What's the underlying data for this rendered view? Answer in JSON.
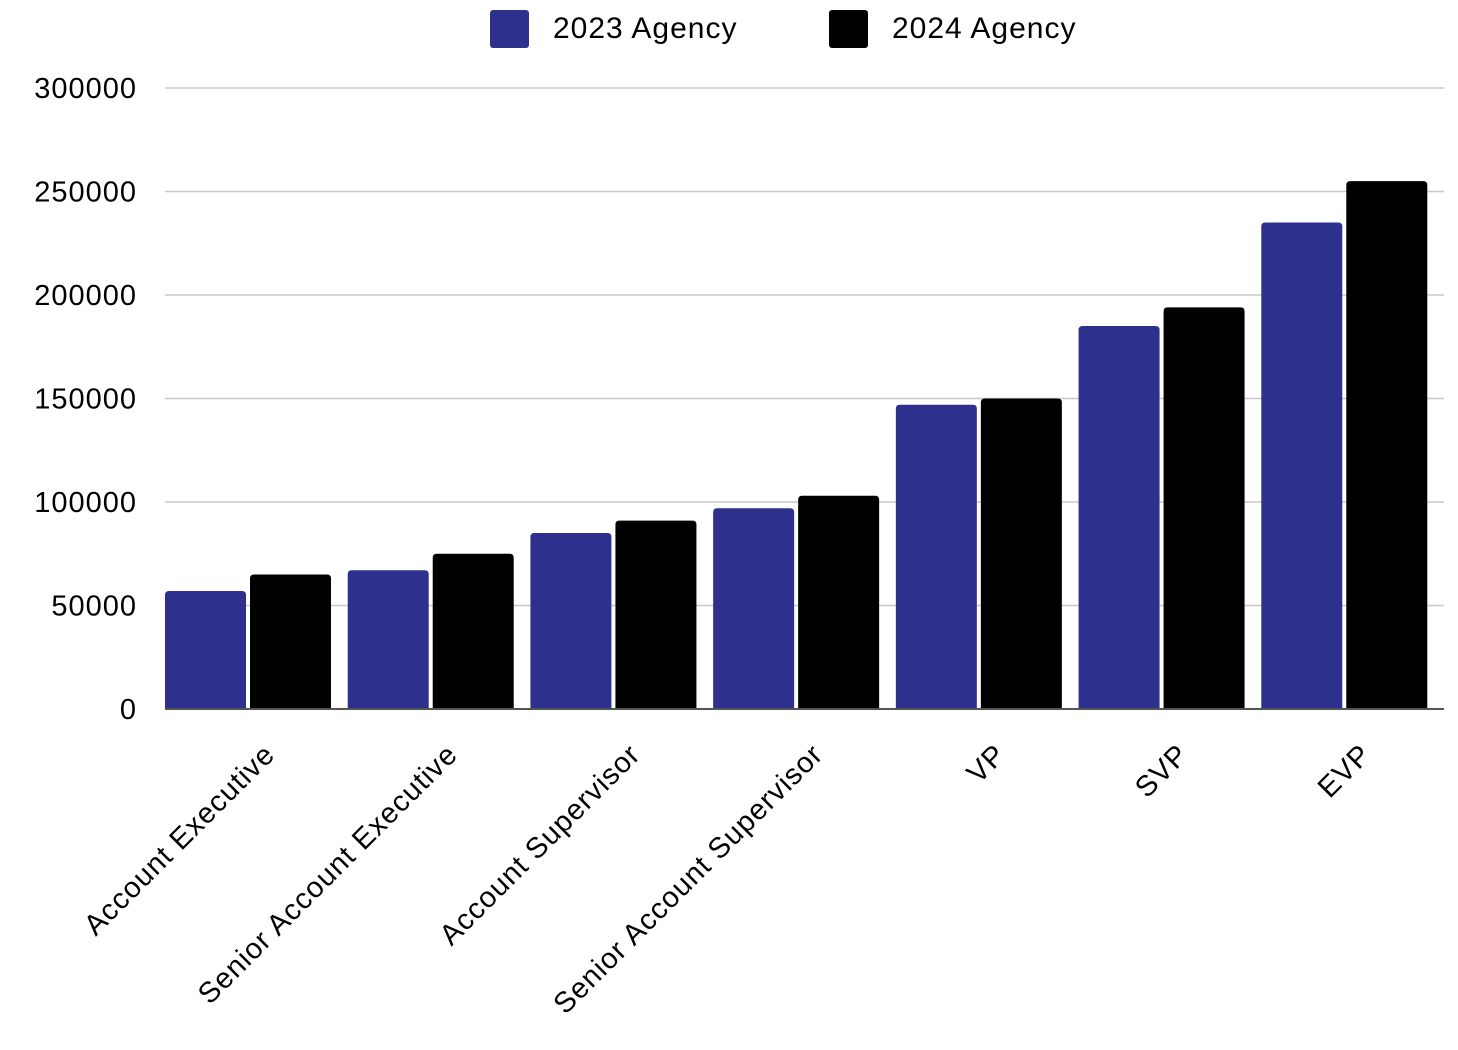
{
  "chart_data": {
    "type": "bar",
    "title": "",
    "xlabel": "",
    "ylabel": "",
    "categories": [
      "Account Executive",
      "Senior Account Executive",
      "Account Supervisor",
      "Senior Account Supervisor",
      "VP",
      "SVP",
      "EVP"
    ],
    "series": [
      {
        "name": "2023 Agency",
        "color": "#2e308e",
        "values": [
          57000,
          67000,
          85000,
          97000,
          147000,
          185000,
          235000
        ]
      },
      {
        "name": "2024 Agency",
        "color": "#000000",
        "values": [
          65000,
          75000,
          91000,
          103000,
          150000,
          194000,
          255000
        ]
      }
    ],
    "ylim": [
      0,
      300000
    ],
    "yticks": [
      0,
      50000,
      100000,
      150000,
      200000,
      250000,
      300000
    ],
    "grid": true,
    "legend_position": "top-center"
  }
}
